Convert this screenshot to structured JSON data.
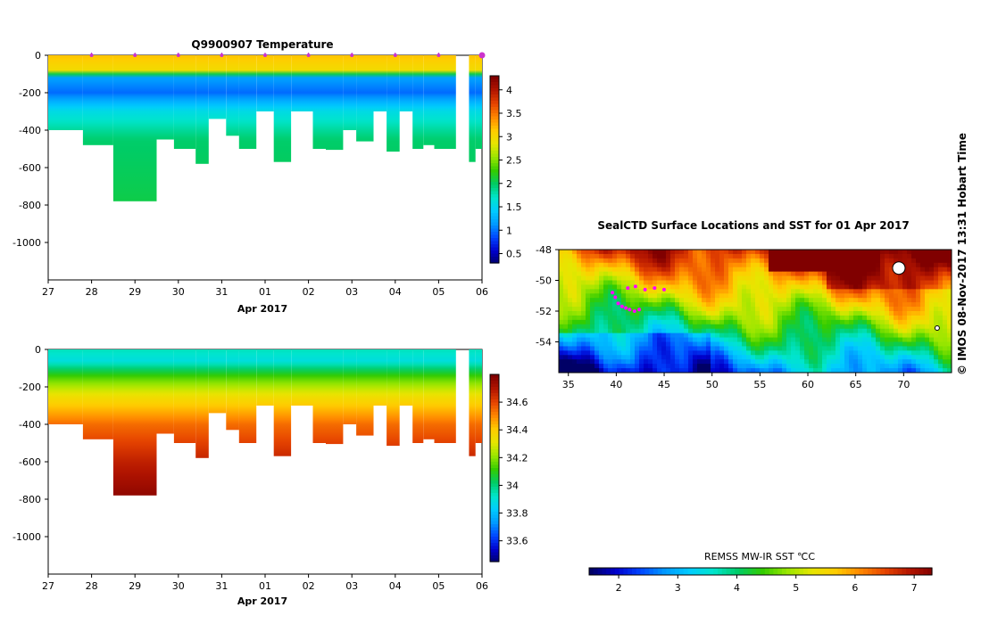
{
  "colors": {
    "jet": [
      "#000066",
      "#0000cc",
      "#0044ff",
      "#0099ff",
      "#00ccff",
      "#00e5cc",
      "#00cc66",
      "#33cc00",
      "#99e600",
      "#e6e600",
      "#ffcc00",
      "#ff8800",
      "#e64400",
      "#b31500",
      "#800000"
    ],
    "land_white": "#ffffff",
    "track": "#ff00ff"
  },
  "chart_data": [
    {
      "id": "temperature",
      "type": "heatmap",
      "title": "Q9900907  Temperature",
      "xlabel": "Apr 2017",
      "ylabel": "",
      "xticks": [
        {
          "v": 27,
          "label": "27"
        },
        {
          "v": 28,
          "label": "28"
        },
        {
          "v": 29,
          "label": "29"
        },
        {
          "v": 30,
          "label": "30"
        },
        {
          "v": 31,
          "label": "31"
        },
        {
          "v": 32,
          "label": "01"
        },
        {
          "v": 33,
          "label": "02"
        },
        {
          "v": 34,
          "label": "03"
        },
        {
          "v": 35,
          "label": "04"
        },
        {
          "v": 36,
          "label": "05"
        },
        {
          "v": 37,
          "label": "06"
        }
      ],
      "xlim": [
        27,
        37
      ],
      "ylim": [
        -1200,
        0
      ],
      "yticks": [
        0,
        -200,
        -400,
        -600,
        -800,
        -1000
      ],
      "colorbar": {
        "min": 0.3,
        "max": 4.3,
        "ticks": [
          0.5,
          1,
          1.5,
          2,
          2.5,
          3,
          3.5,
          4
        ]
      },
      "surfacing_markers": [
        28,
        29,
        30,
        31,
        32,
        33,
        34,
        35,
        36,
        37
      ],
      "profiles": [
        {
          "t0": 27.0,
          "t1": 27.8,
          "depth": 400
        },
        {
          "t0": 27.8,
          "t1": 28.5,
          "depth": 480
        },
        {
          "t0": 28.5,
          "t1": 29.5,
          "depth": 780
        },
        {
          "t0": 29.5,
          "t1": 29.9,
          "depth": 450
        },
        {
          "t0": 29.9,
          "t1": 30.4,
          "depth": 500
        },
        {
          "t0": 30.4,
          "t1": 30.7,
          "depth": 580
        },
        {
          "t0": 30.7,
          "t1": 31.1,
          "depth": 340
        },
        {
          "t0": 31.1,
          "t1": 31.4,
          "depth": 430
        },
        {
          "t0": 31.4,
          "t1": 31.8,
          "depth": 500
        },
        {
          "t0": 31.8,
          "t1": 32.2,
          "depth": 300
        },
        {
          "t0": 32.2,
          "t1": 32.6,
          "depth": 570
        },
        {
          "t0": 32.6,
          "t1": 33.1,
          "depth": 300
        },
        {
          "t0": 33.1,
          "t1": 33.4,
          "depth": 500
        },
        {
          "t0": 33.4,
          "t1": 33.8,
          "depth": 505
        },
        {
          "t0": 33.8,
          "t1": 34.1,
          "depth": 400
        },
        {
          "t0": 34.1,
          "t1": 34.5,
          "depth": 460
        },
        {
          "t0": 34.5,
          "t1": 34.8,
          "depth": 300
        },
        {
          "t0": 34.8,
          "t1": 35.1,
          "depth": 515
        },
        {
          "t0": 35.1,
          "t1": 35.4,
          "depth": 300
        },
        {
          "t0": 35.4,
          "t1": 35.65,
          "depth": 500
        },
        {
          "t0": 35.65,
          "t1": 35.9,
          "depth": 480
        },
        {
          "t0": 35.9,
          "t1": 36.4,
          "depth": 500
        },
        {
          "t0": 36.7,
          "t1": 36.85,
          "depth": 570
        },
        {
          "t0": 36.85,
          "t1": 37.0,
          "depth": 500
        }
      ],
      "profile_values": [
        {
          "z": 0,
          "v": 3.2
        },
        {
          "z": 80,
          "v": 3.0
        },
        {
          "z": 120,
          "v": 1.2
        },
        {
          "z": 200,
          "v": 1.0
        },
        {
          "z": 300,
          "v": 1.6
        },
        {
          "z": 450,
          "v": 2.0
        },
        {
          "z": 800,
          "v": 2.1
        }
      ]
    },
    {
      "id": "salinity",
      "type": "heatmap",
      "title": "",
      "xlabel": "Apr 2017",
      "ylabel": "",
      "xticks": [
        {
          "v": 27,
          "label": "27"
        },
        {
          "v": 28,
          "label": "28"
        },
        {
          "v": 29,
          "label": "29"
        },
        {
          "v": 30,
          "label": "30"
        },
        {
          "v": 31,
          "label": "31"
        },
        {
          "v": 32,
          "label": "01"
        },
        {
          "v": 33,
          "label": "02"
        },
        {
          "v": 34,
          "label": "03"
        },
        {
          "v": 35,
          "label": "04"
        },
        {
          "v": 36,
          "label": "05"
        },
        {
          "v": 37,
          "label": "06"
        }
      ],
      "xlim": [
        27,
        37
      ],
      "ylim": [
        -1200,
        0
      ],
      "yticks": [
        0,
        -200,
        -400,
        -600,
        -800,
        -1000
      ],
      "colorbar": {
        "min": 33.45,
        "max": 34.8,
        "ticks": [
          33.6,
          33.8,
          34,
          34.2,
          34.4,
          34.6
        ]
      },
      "profiles_ref": "temperature",
      "profile_values": [
        {
          "z": 0,
          "v": 33.95
        },
        {
          "z": 60,
          "v": 33.9
        },
        {
          "z": 150,
          "v": 34.15
        },
        {
          "z": 250,
          "v": 34.35
        },
        {
          "z": 400,
          "v": 34.55
        },
        {
          "z": 600,
          "v": 34.68
        },
        {
          "z": 800,
          "v": 34.78
        }
      ]
    },
    {
      "id": "sst_map",
      "type": "heatmap",
      "title": "SealCTD Surface Locations and SST for 01 Apr 2017",
      "xlim": [
        34,
        75
      ],
      "ylim": [
        -56,
        -48
      ],
      "xticks": [
        35,
        40,
        45,
        50,
        55,
        60,
        65,
        70
      ],
      "yticks": [
        -48,
        -50,
        -52,
        -54
      ],
      "colorbar": {
        "label": "REMSS MW-IR SST ℃C",
        "min": 1.5,
        "max": 7.3,
        "ticks": [
          2,
          3,
          4,
          5,
          6,
          7
        ]
      },
      "track_positions": [
        {
          "lon": 39.6,
          "lat": -50.8
        },
        {
          "lon": 39.9,
          "lat": -51.1
        },
        {
          "lon": 40.2,
          "lat": -51.5
        },
        {
          "lon": 40.6,
          "lat": -51.7
        },
        {
          "lon": 41.0,
          "lat": -51.8
        },
        {
          "lon": 41.4,
          "lat": -51.9
        },
        {
          "lon": 41.9,
          "lat": -52.0
        },
        {
          "lon": 42.4,
          "lat": -51.9
        },
        {
          "lon": 41.2,
          "lat": -50.5
        },
        {
          "lon": 42.0,
          "lat": -50.4
        },
        {
          "lon": 43.0,
          "lat": -50.6
        },
        {
          "lon": 44.0,
          "lat": -50.5
        },
        {
          "lon": 45.0,
          "lat": -50.6
        }
      ]
    }
  ],
  "side_label": "©  IMOS 08-Nov-2017 13:31 Hobart Time"
}
